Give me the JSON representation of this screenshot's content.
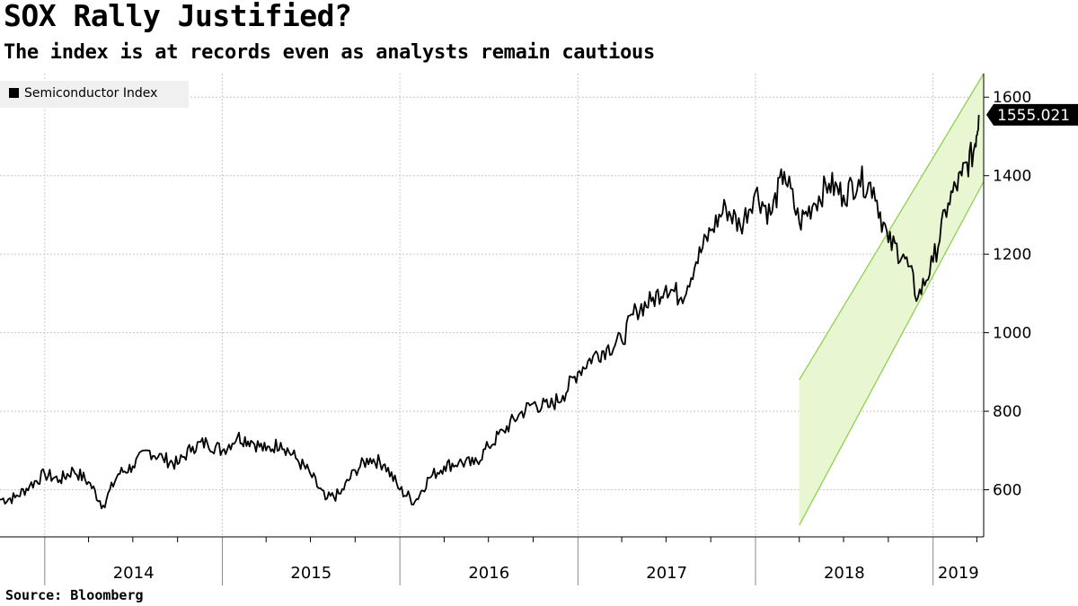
{
  "title": "SOX Rally Justified?",
  "subtitle": "The index is at records even as analysts remain cautious",
  "source": "Source: Bloomberg",
  "chart_data": {
    "type": "line",
    "title": "SOX Rally Justified?",
    "subtitle": "The index is at records even as analysts remain cautious",
    "xlabel": "",
    "ylabel": "",
    "x_range": [
      "2013-10-01",
      "2019-04-15"
    ],
    "ylim": [
      480,
      1660
    ],
    "y_ticks": [
      600,
      800,
      1000,
      1200,
      1400,
      1600
    ],
    "x_tick_labels": [
      "2014",
      "2015",
      "2016",
      "2017",
      "2018",
      "2019"
    ],
    "grid": true,
    "legend": {
      "position": "top-left",
      "entries": [
        "Semiconductor Index"
      ]
    },
    "last_value_label": "1555.021",
    "series": [
      {
        "name": "Semiconductor Index",
        "color": "#000000",
        "points": [
          [
            "2013-10-01",
            575
          ],
          [
            "2013-11-01",
            580
          ],
          [
            "2013-12-01",
            610
          ],
          [
            "2014-01-01",
            640
          ],
          [
            "2014-02-01",
            625
          ],
          [
            "2014-03-01",
            650
          ],
          [
            "2014-04-01",
            620
          ],
          [
            "2014-05-01",
            560
          ],
          [
            "2014-06-01",
            640
          ],
          [
            "2014-07-01",
            660
          ],
          [
            "2014-08-01",
            700
          ],
          [
            "2014-09-01",
            680
          ],
          [
            "2014-10-01",
            665
          ],
          [
            "2014-11-01",
            710
          ],
          [
            "2014-12-01",
            720
          ],
          [
            "2015-01-01",
            700
          ],
          [
            "2015-02-01",
            735
          ],
          [
            "2015-03-01",
            725
          ],
          [
            "2015-04-01",
            700
          ],
          [
            "2015-05-01",
            720
          ],
          [
            "2015-06-01",
            680
          ],
          [
            "2015-07-01",
            640
          ],
          [
            "2015-08-01",
            575
          ],
          [
            "2015-09-01",
            590
          ],
          [
            "2015-10-01",
            650
          ],
          [
            "2015-11-01",
            680
          ],
          [
            "2015-12-01",
            665
          ],
          [
            "2016-01-01",
            600
          ],
          [
            "2016-02-01",
            570
          ],
          [
            "2016-03-01",
            630
          ],
          [
            "2016-04-01",
            660
          ],
          [
            "2016-05-01",
            670
          ],
          [
            "2016-06-01",
            665
          ],
          [
            "2016-07-01",
            710
          ],
          [
            "2016-08-01",
            750
          ],
          [
            "2016-09-01",
            790
          ],
          [
            "2016-10-01",
            820
          ],
          [
            "2016-11-01",
            810
          ],
          [
            "2016-12-01",
            840
          ],
          [
            "2017-01-01",
            900
          ],
          [
            "2017-02-01",
            940
          ],
          [
            "2017-03-01",
            960
          ],
          [
            "2017-04-01",
            980
          ],
          [
            "2017-05-01",
            1060
          ],
          [
            "2017-06-01",
            1080
          ],
          [
            "2017-07-01",
            1120
          ],
          [
            "2017-08-01",
            1090
          ],
          [
            "2017-09-01",
            1180
          ],
          [
            "2017-10-01",
            1260
          ],
          [
            "2017-11-01",
            1320
          ],
          [
            "2017-12-01",
            1270
          ],
          [
            "2018-01-01",
            1360
          ],
          [
            "2018-02-01",
            1300
          ],
          [
            "2018-03-01",
            1410
          ],
          [
            "2018-04-01",
            1280
          ],
          [
            "2018-05-01",
            1330
          ],
          [
            "2018-06-01",
            1380
          ],
          [
            "2018-07-01",
            1350
          ],
          [
            "2018-08-01",
            1390
          ],
          [
            "2018-09-01",
            1370
          ],
          [
            "2018-10-01",
            1230
          ],
          [
            "2018-11-01",
            1200
          ],
          [
            "2018-12-01",
            1090
          ],
          [
            "2019-01-01",
            1180
          ],
          [
            "2019-02-01",
            1330
          ],
          [
            "2019-03-01",
            1400
          ],
          [
            "2019-03-25",
            1460
          ],
          [
            "2019-04-05",
            1555.021
          ]
        ]
      }
    ],
    "annotation_channel": {
      "color": "#e8f6d2",
      "stroke": "#8fd14f",
      "start": {
        "date": "2018-04-01",
        "upper": 880,
        "lower": 510
      },
      "end": {
        "date": "2019-04-15",
        "upper": 1660,
        "lower": 1385
      }
    }
  }
}
